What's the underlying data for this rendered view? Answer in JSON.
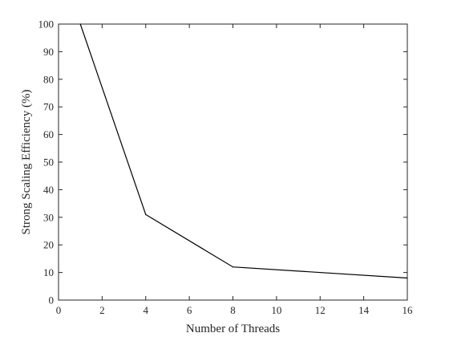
{
  "chart_data": {
    "type": "line",
    "title": "",
    "xlabel": "Number of Threads",
    "ylabel": "Strong Scaling Efficiency (%)",
    "xlim": [
      0,
      16
    ],
    "ylim": [
      0,
      100
    ],
    "xticks": [
      0,
      2,
      4,
      6,
      8,
      10,
      12,
      14,
      16
    ],
    "yticks": [
      0,
      10,
      20,
      30,
      40,
      50,
      60,
      70,
      80,
      90,
      100
    ],
    "grid": false,
    "legend": "none",
    "series": [
      {
        "x": [
          1,
          4,
          8,
          16
        ],
        "values": [
          100,
          31,
          12,
          8
        ],
        "color": "#000000"
      }
    ]
  }
}
